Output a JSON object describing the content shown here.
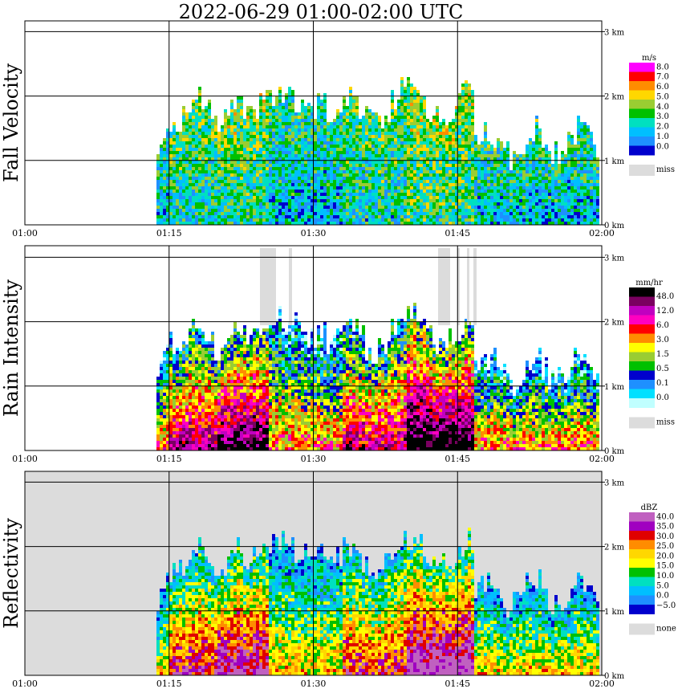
{
  "title": "2022-06-29  01:00-02:00 UTC",
  "colors": {
    "miss": "#dcdcdc",
    "background": "#ffffff",
    "frame": "#000000"
  },
  "chart_data": [
    {
      "type": "heatmap",
      "ylabel": "Fall Velocity",
      "x_ticks": [
        "01:00",
        "01:15",
        "01:30",
        "01:45",
        "02:00"
      ],
      "y_ticks": [
        "0 km",
        "1 km",
        "2 km",
        "3 km"
      ],
      "xlim": [
        "01:00",
        "02:00"
      ],
      "ylim_km": [
        0,
        3.2
      ],
      "grid": true,
      "background": "#ffffff",
      "colorbar": {
        "unit": "m/s",
        "labels": [
          "8.0",
          "7.0",
          "6.0",
          "5.0",
          "4.0",
          "3.0",
          "2.0",
          "1.0",
          "0.0"
        ],
        "colors": [
          "#ff00ff",
          "#ff0000",
          "#ff8c00",
          "#ffd700",
          "#9acd32",
          "#00c000",
          "#00e0c0",
          "#00bfff",
          "#1e90ff",
          "#0000cd"
        ],
        "miss_label": "miss"
      }
    },
    {
      "type": "heatmap",
      "ylabel": "Rain Intensity",
      "x_ticks": [
        "01:00",
        "01:15",
        "01:30",
        "01:45",
        "02:00"
      ],
      "y_ticks": [
        "0 km",
        "1 km",
        "2 km",
        "3 km"
      ],
      "xlim": [
        "01:00",
        "02:00"
      ],
      "ylim_km": [
        0,
        3.2
      ],
      "grid": true,
      "background": "#ffffff",
      "colorbar": {
        "unit": "mm/hr",
        "labels": [
          "48.0",
          "12.0",
          "6.0",
          "3.0",
          "1.5",
          "0.5",
          "0.1",
          "0.0"
        ],
        "colors": [
          "#000000",
          "#7a0060",
          "#c000c0",
          "#ff00c0",
          "#ff0000",
          "#ff8c00",
          "#ffff00",
          "#9acd32",
          "#00c000",
          "#0000cd",
          "#1e90ff",
          "#00e0ff",
          "#c0ffff"
        ],
        "miss_label": "miss"
      }
    },
    {
      "type": "heatmap",
      "ylabel": "Reflectivity",
      "x_ticks": [
        "01:00",
        "01:15",
        "01:30",
        "01:45",
        "02:00"
      ],
      "y_ticks": [
        "0 km",
        "1 km",
        "2 km",
        "3 km"
      ],
      "xlim": [
        "01:00",
        "02:00"
      ],
      "ylim_km": [
        0,
        3.2
      ],
      "grid": true,
      "background": "#dcdcdc",
      "colorbar": {
        "unit": "dBZ",
        "labels": [
          "40.0",
          "35.0",
          "30.0",
          "25.0",
          "20.0",
          "15.0",
          "10.0",
          "5.0",
          "0.0",
          "−5.0"
        ],
        "colors": [
          "#c060c0",
          "#a000c0",
          "#e00000",
          "#ff8c00",
          "#ffd700",
          "#ffff00",
          "#00c000",
          "#00e0c0",
          "#00bfff",
          "#1e90ff",
          "#0000cd"
        ],
        "miss_label": "none"
      }
    }
  ]
}
